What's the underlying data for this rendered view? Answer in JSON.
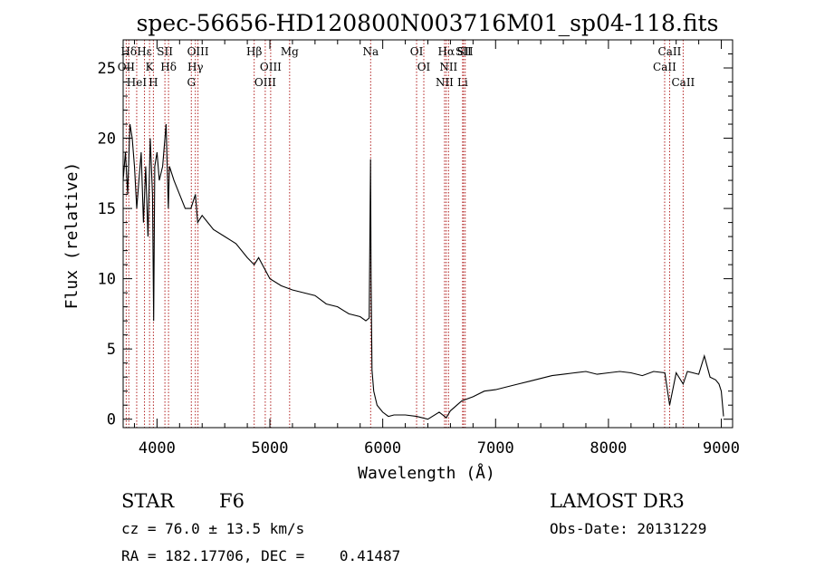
{
  "chart_data": {
    "type": "line",
    "title": "spec-56656-HD120800N003716M01_sp04-118.fits",
    "xlabel": "Wavelength (Å)",
    "ylabel": "Flux (relative)",
    "xlim": [
      3700,
      9100
    ],
    "ylim": [
      -0.6,
      27
    ],
    "xticks": [
      4000,
      5000,
      6000,
      7000,
      8000,
      9000
    ],
    "yticks": [
      0,
      5,
      10,
      15,
      20,
      25
    ],
    "grid": false,
    "series": [
      {
        "x": [
          3700,
          3720,
          3740,
          3760,
          3780,
          3800,
          3820,
          3840,
          3860,
          3880,
          3900,
          3920,
          3940,
          3960,
          3970,
          3980,
          4000,
          4020,
          4050,
          4080,
          4100,
          4110,
          4150,
          4200,
          4250,
          4300,
          4340,
          4360,
          4400,
          4450,
          4500,
          4600,
          4700,
          4800,
          4861,
          4900,
          5000,
          5100,
          5200,
          5300,
          5400,
          5500,
          5600,
          5700,
          5800,
          5850,
          5880,
          5892,
          5897,
          5905,
          5920,
          5950,
          6000,
          6050,
          6100,
          6200,
          6300,
          6400,
          6500,
          6563,
          6600,
          6700,
          6800,
          6900,
          7000,
          7100,
          7200,
          7300,
          7400,
          7500,
          7600,
          7700,
          7800,
          7900,
          8000,
          8100,
          8200,
          8300,
          8400,
          8500,
          8542,
          8600,
          8662,
          8700,
          8800,
          8850,
          8900,
          8950,
          8980,
          9000,
          9020
        ],
        "y": [
          17,
          19,
          16,
          21,
          20,
          18,
          15,
          17,
          19,
          14,
          18,
          13,
          20,
          16,
          7,
          18,
          19,
          17,
          18,
          21,
          15,
          18,
          17,
          16,
          15,
          15,
          16,
          14,
          14.5,
          14,
          13.5,
          13,
          12.5,
          11.5,
          11,
          11.5,
          10,
          9.5,
          9.2,
          9,
          8.8,
          8.2,
          8,
          7.5,
          7.3,
          7.0,
          7.2,
          18.5,
          10,
          3.5,
          2,
          1,
          0.5,
          0.2,
          0.3,
          0.3,
          0.2,
          0,
          0.5,
          0.1,
          0.6,
          1.3,
          1.6,
          2.0,
          2.1,
          2.3,
          2.5,
          2.7,
          2.9,
          3.1,
          3.2,
          3.3,
          3.4,
          3.2,
          3.3,
          3.4,
          3.3,
          3.1,
          3.4,
          3.3,
          1.0,
          3.3,
          2.5,
          3.4,
          3.2,
          4.5,
          3.0,
          2.8,
          2.5,
          2.0,
          0.2
        ]
      }
    ],
    "lines": [
      {
        "name": "Hδ",
        "x": 3750
      },
      {
        "name": "OII",
        "x": 3727
      },
      {
        "name": "HeI",
        "x": 3820
      },
      {
        "name": "Hε",
        "x": 3889
      },
      {
        "name": "K",
        "x": 3934
      },
      {
        "name": "SII",
        "x": 4070
      },
      {
        "name": "H",
        "x": 3968
      },
      {
        "name": "Hδ",
        "x": 4102
      },
      {
        "name": "OIII",
        "x": 4363
      },
      {
        "name": "Hγ",
        "x": 4340
      },
      {
        "name": "G",
        "x": 4304
      },
      {
        "name": "Hβ",
        "x": 4861
      },
      {
        "name": "OIII",
        "x": 5007
      },
      {
        "name": "OIII",
        "x": 4959
      },
      {
        "name": "Mg",
        "x": 5175
      },
      {
        "name": "Na",
        "x": 5893
      },
      {
        "name": "OI",
        "x": 6300
      },
      {
        "name": "OI",
        "x": 6364
      },
      {
        "name": "Hα",
        "x": 6563
      },
      {
        "name": "NII",
        "x": 6583
      },
      {
        "name": "NII",
        "x": 6548
      },
      {
        "name": "SII",
        "x": 6716
      },
      {
        "name": "Li",
        "x": 6708
      },
      {
        "name": "SII",
        "x": 6731
      },
      {
        "name": "CaII",
        "x": 8542
      },
      {
        "name": "CaII",
        "x": 8498
      },
      {
        "name": "CaII",
        "x": 8662
      }
    ]
  },
  "info": {
    "class": "STAR",
    "subclass": "F6",
    "survey": "LAMOST DR3",
    "cz": "cz = 76.0 ± 13.5 km/s",
    "obs_date": "Obs-Date: 20131229",
    "coords": "RA = 182.17706, DEC =    0.41487"
  },
  "colors": {
    "spectrum": "#000000",
    "line_markers": "#b22222"
  }
}
